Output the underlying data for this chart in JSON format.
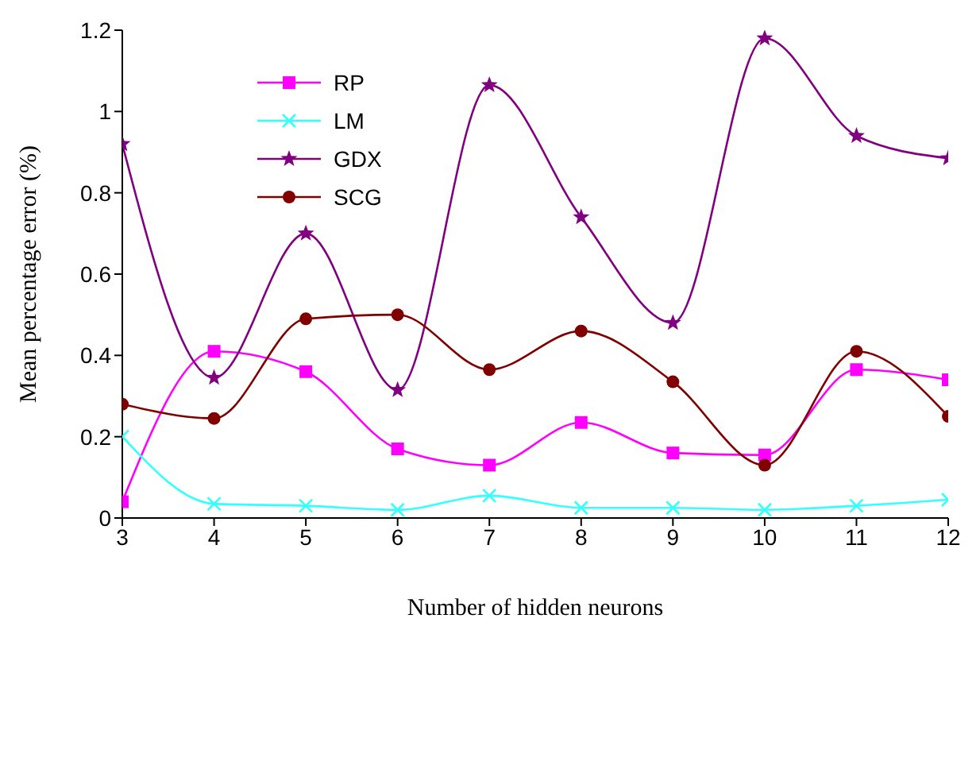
{
  "chart_data": {
    "type": "line",
    "xlabel": "Number of hidden neurons",
    "ylabel": "Mean percentage error (%)",
    "x": [
      3,
      4,
      5,
      6,
      7,
      8,
      9,
      10,
      11,
      12
    ],
    "xlim": [
      3,
      12
    ],
    "xticks": [
      3,
      4,
      5,
      6,
      7,
      8,
      9,
      10,
      11,
      12
    ],
    "ylim": [
      0,
      1.2
    ],
    "yticks": [
      0,
      0.2,
      0.4,
      0.6,
      0.8,
      1,
      1.2
    ],
    "grid": false,
    "legend": "top left",
    "series": [
      {
        "name": "RP",
        "color": "#ff00ff",
        "marker": "square",
        "values": [
          0.04,
          0.41,
          0.36,
          0.17,
          0.13,
          0.235,
          0.16,
          0.155,
          0.365,
          0.34
        ]
      },
      {
        "name": "LM",
        "color": "#33ffff",
        "marker": "cross",
        "values": [
          0.2,
          0.035,
          0.03,
          0.02,
          0.055,
          0.025,
          0.025,
          0.02,
          0.03,
          0.045
        ]
      },
      {
        "name": "GDX",
        "color": "#800080",
        "marker": "star",
        "values": [
          0.92,
          0.345,
          0.7,
          0.315,
          1.065,
          0.74,
          0.48,
          1.18,
          0.94,
          0.885
        ]
      },
      {
        "name": "SCG",
        "color": "#800000",
        "marker": "circle",
        "values": [
          0.28,
          0.245,
          0.49,
          0.5,
          0.365,
          0.46,
          0.335,
          0.13,
          0.41,
          0.25
        ]
      }
    ]
  }
}
